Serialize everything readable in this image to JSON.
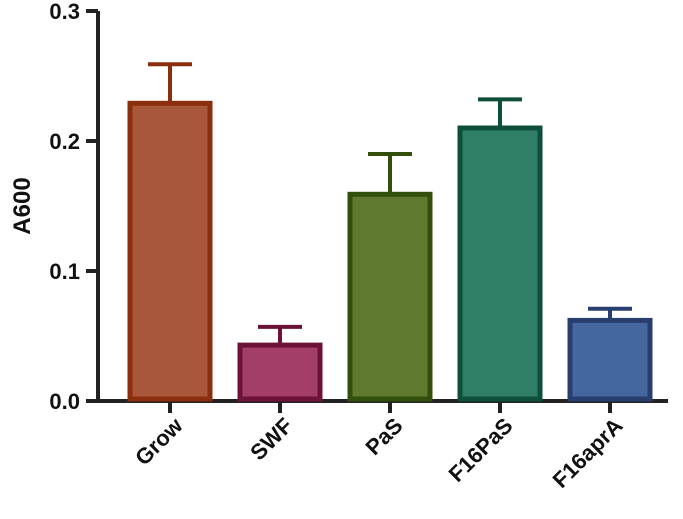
{
  "chart_data": {
    "type": "bar",
    "title": "",
    "xlabel": "",
    "ylabel": "A600",
    "ylim": [
      0,
      0.3
    ],
    "yticks": [
      "0.0",
      "0.1",
      "0.2",
      "0.3"
    ],
    "yticks_values": [
      0,
      0.1,
      0.2,
      0.3
    ],
    "categories": [
      "Grow",
      "SWF",
      "PaS",
      "F16PaS",
      "F16aprA"
    ],
    "values": [
      0.229,
      0.043,
      0.159,
      0.21,
      0.062
    ],
    "errors": [
      0.03,
      0.014,
      0.031,
      0.022,
      0.009
    ],
    "grid": false,
    "legend": "none",
    "fill_colors": [
      "#a9573b",
      "#a23e68",
      "#5f7a2e",
      "#2f7f68",
      "#4567a0"
    ],
    "stroke_colors": [
      "#8a2e0e",
      "#6c1238",
      "#324f0c",
      "#0d4f3b",
      "#283f6e"
    ]
  }
}
